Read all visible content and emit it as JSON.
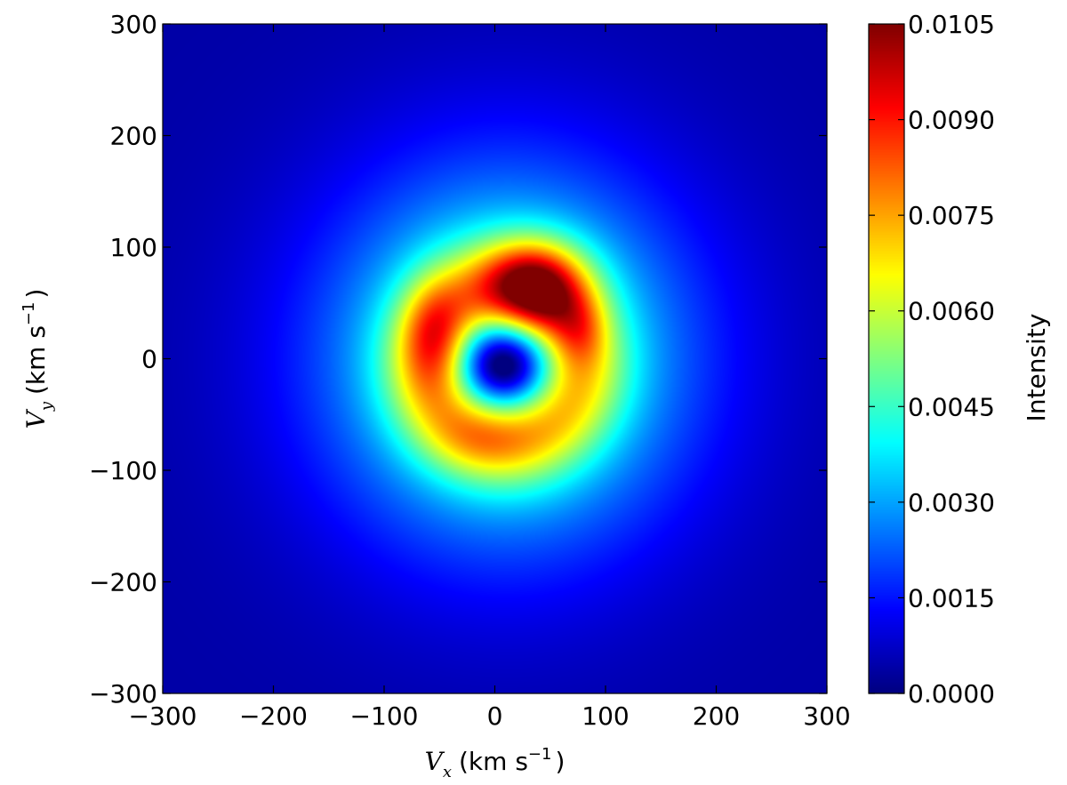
{
  "chart_data": {
    "type": "heatmap",
    "title": "",
    "xlabel": {
      "symbol": "V",
      "subscript": "x",
      "unit": "(km s",
      "exponent": "−1",
      "close": ")"
    },
    "ylabel": {
      "symbol": "V",
      "subscript": "y",
      "unit": "(km s",
      "exponent": "−1",
      "close": ")"
    },
    "xlim": [
      -300,
      300
    ],
    "ylim": [
      -300,
      300
    ],
    "x_ticks": [
      -300,
      -200,
      -100,
      0,
      100,
      200,
      300
    ],
    "x_tick_labels": [
      "−300",
      "−200",
      "−100",
      "0",
      "100",
      "200",
      "300"
    ],
    "y_ticks": [
      -300,
      -200,
      -100,
      0,
      100,
      200,
      300
    ],
    "y_tick_labels": [
      "−300",
      "−200",
      "−100",
      "0",
      "100",
      "200",
      "300"
    ],
    "colormap": "jet",
    "colorbar": {
      "label": "Intensity",
      "min": 0.0,
      "max": 0.0105,
      "ticks": [
        0.0,
        0.0015,
        0.003,
        0.0045,
        0.006,
        0.0075,
        0.009,
        0.0105
      ],
      "tick_labels": [
        "0.0000",
        "0.0015",
        "0.0030",
        "0.0045",
        "0.0060",
        "0.0075",
        "0.0090",
        "0.0105"
      ]
    },
    "background_level": 0.0004,
    "features": [
      {
        "kind": "halo",
        "vx": 10,
        "vy": 0,
        "sigma_x": 115,
        "sigma_y": 118,
        "peak": 0.0048
      },
      {
        "kind": "ring",
        "vx": 8,
        "vy": -5,
        "radius": 68,
        "width": 30,
        "peak": 0.0032
      },
      {
        "kind": "peak",
        "vx": 38,
        "vy": 65,
        "sigma_x": 32,
        "sigma_y": 28,
        "peak": 0.0048
      },
      {
        "kind": "peak",
        "vx": -55,
        "vy": 20,
        "sigma_x": 20,
        "sigma_y": 34,
        "peak": 0.0022
      },
      {
        "kind": "peak",
        "vx": 78,
        "vy": 25,
        "sigma_x": 16,
        "sigma_y": 22,
        "peak": 0.0012
      },
      {
        "kind": "peak",
        "vx": -10,
        "vy": -70,
        "sigma_x": 32,
        "sigma_y": 22,
        "peak": 0.0009
      },
      {
        "kind": "depression",
        "vx": 8,
        "vy": -5,
        "sigma_x": 30,
        "sigma_y": 28,
        "depth": 0.006
      }
    ]
  }
}
